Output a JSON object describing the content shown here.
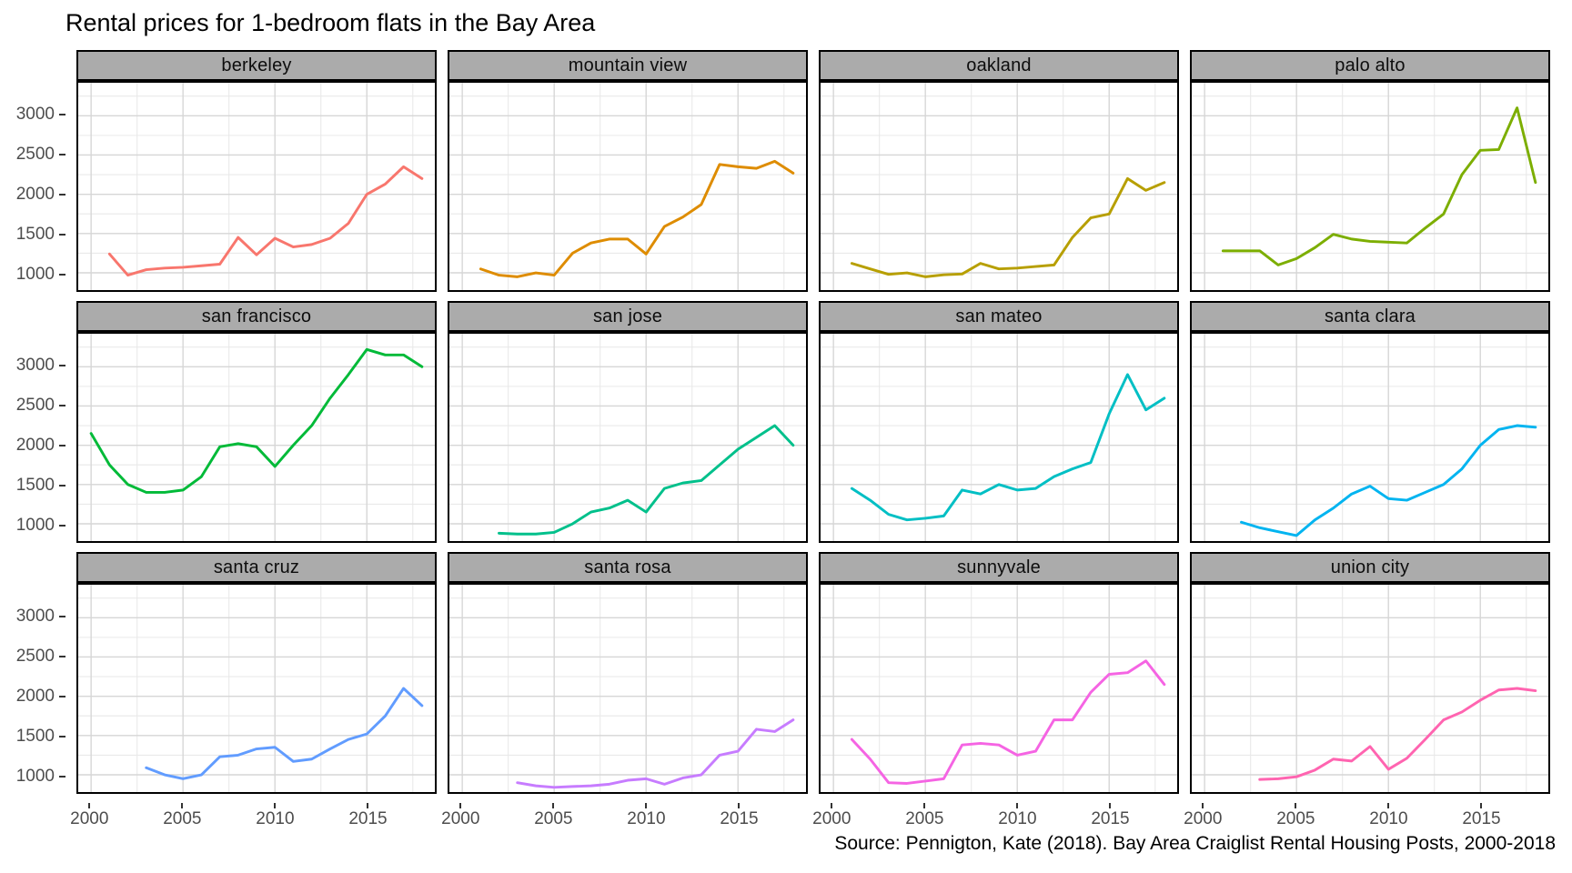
{
  "chart_data": {
    "type": "line",
    "title": "Rental prices for 1-bedroom flats in the Bay Area",
    "caption": "Source: Pennigton, Kate (2018). Bay Area Craiglist Rental Housing Posts, 2000-2018",
    "xlabel": "",
    "ylabel": "",
    "x_domain": [
      1999.3,
      2018.7
    ],
    "y_domain": [
      780,
      3420
    ],
    "x_ticks": [
      2000,
      2005,
      2010,
      2015
    ],
    "x_minor_ticks": [
      2002.5,
      2007.5,
      2012.5,
      2017.5
    ],
    "y_ticks": [
      1000,
      1500,
      2000,
      2500,
      3000
    ],
    "y_minor_ticks": [
      1250,
      1750,
      2250,
      2750,
      3250
    ],
    "grid": true,
    "legend_position": "none",
    "panel_border_color": "#000000",
    "strip_background_color": "#ababab",
    "axis_text_color": "#4d4d4d",
    "facets_per_row": 4,
    "facets": [
      {
        "label": "berkeley",
        "color": "#F8766D",
        "start_year": 2001,
        "values": [
          1240,
          970,
          1040,
          1060,
          1070,
          1090,
          1110,
          1450,
          1230,
          1440,
          1330,
          1360,
          1440,
          1630,
          2000,
          2130,
          2350,
          2200
        ]
      },
      {
        "label": "mountain view",
        "color": "#DE8C00",
        "start_year": 2001,
        "values": [
          1050,
          970,
          950,
          1000,
          970,
          1250,
          1380,
          1430,
          1430,
          1240,
          1590,
          1710,
          1870,
          2380,
          2350,
          2330,
          2420,
          2270
        ]
      },
      {
        "label": "oakland",
        "color": "#B79F00",
        "start_year": 2001,
        "values": [
          1120,
          1050,
          980,
          1000,
          950,
          975,
          985,
          1120,
          1050,
          1060,
          1080,
          1100,
          1450,
          1700,
          1750,
          2200,
          2050,
          2150
        ]
      },
      {
        "label": "palo alto",
        "color": "#7CAE00",
        "start_year": 2001,
        "values": [
          1280,
          1280,
          1280,
          1100,
          1180,
          1320,
          1490,
          1430,
          1400,
          1390,
          1380,
          1570,
          1750,
          2250,
          2560,
          2570,
          3100,
          2150
        ]
      },
      {
        "label": "san francisco",
        "color": "#00BA38",
        "start_year": 2000,
        "values": [
          2150,
          1750,
          1500,
          1400,
          1400,
          1430,
          1600,
          1980,
          2020,
          1980,
          1730,
          2000,
          2250,
          2600,
          2900,
          3220,
          3150,
          3150,
          3000
        ]
      },
      {
        "label": "san jose",
        "color": "#00C08B",
        "start_year": 2002,
        "values": [
          880,
          870,
          870,
          890,
          1000,
          1150,
          1200,
          1300,
          1150,
          1450,
          1520,
          1550,
          1750,
          1950,
          2100,
          2250,
          2000
        ]
      },
      {
        "label": "san mateo",
        "color": "#00BFC4",
        "start_year": 2001,
        "values": [
          1450,
          1300,
          1120,
          1050,
          1070,
          1100,
          1430,
          1380,
          1500,
          1430,
          1450,
          1600,
          1700,
          1780,
          2400,
          2900,
          2450,
          2600
        ]
      },
      {
        "label": "santa clara",
        "color": "#00B4F0",
        "start_year": 2002,
        "values": [
          1020,
          950,
          900,
          850,
          1050,
          1200,
          1380,
          1480,
          1320,
          1300,
          1400,
          1500,
          1700,
          2000,
          2200,
          2250,
          2230
        ]
      },
      {
        "label": "santa cruz",
        "color": "#619CFF",
        "start_year": 2003,
        "values": [
          1090,
          1000,
          950,
          1000,
          1230,
          1250,
          1330,
          1350,
          1170,
          1200,
          1330,
          1450,
          1520,
          1750,
          2100,
          1880
        ]
      },
      {
        "label": "santa rosa",
        "color": "#C77CFF",
        "start_year": 2003,
        "values": [
          900,
          860,
          840,
          850,
          860,
          880,
          930,
          950,
          880,
          960,
          1000,
          1250,
          1300,
          1580,
          1550,
          1700
        ]
      },
      {
        "label": "sunnyvale",
        "color": "#F564E3",
        "start_year": 2001,
        "values": [
          1450,
          1200,
          900,
          890,
          920,
          950,
          1380,
          1400,
          1380,
          1250,
          1300,
          1700,
          1700,
          2050,
          2280,
          2300,
          2450,
          2150
        ]
      },
      {
        "label": "union city",
        "color": "#FF64B0",
        "start_year": 2003,
        "values": [
          940,
          950,
          975,
          1060,
          1200,
          1175,
          1360,
          1070,
          1210,
          1450,
          1700,
          1800,
          1950,
          2080,
          2100,
          2070
        ]
      }
    ]
  }
}
